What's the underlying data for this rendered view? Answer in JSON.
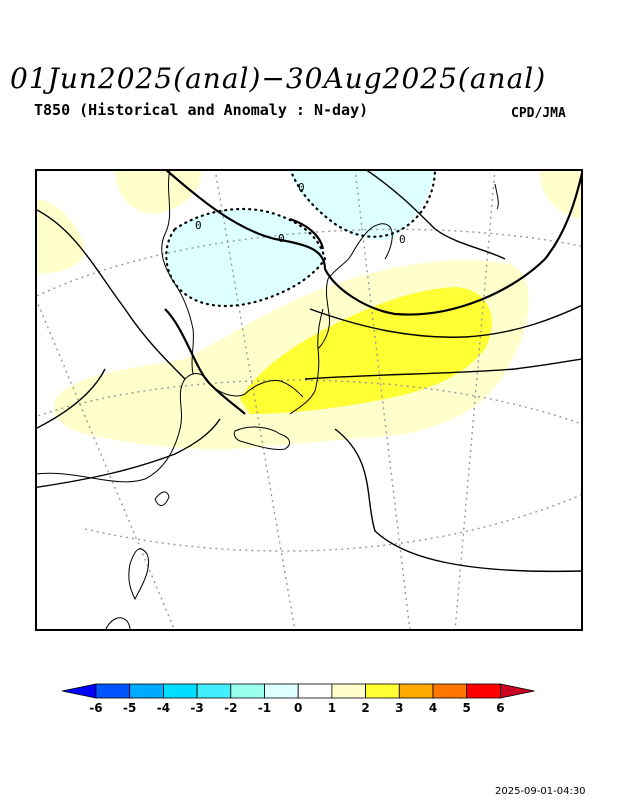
{
  "header": {
    "title": "01Jun2025(anal)−30Aug2025(anal)",
    "subtitle": "T850 (Historical and Anomaly : N-day)",
    "source": "CPD/JMA"
  },
  "map": {
    "contour_labels": [
      "0",
      "0",
      "0",
      "0"
    ],
    "shading_colors": {
      "pos1": "#ffffcc",
      "pos2": "#ffff33",
      "neg1": "#ddffff"
    }
  },
  "legend": {
    "ticks": [
      "-6",
      "-5",
      "-4",
      "-3",
      "-2",
      "-1",
      "0",
      "1",
      "2",
      "3",
      "4",
      "5",
      "6"
    ],
    "colors": [
      "#0000ff",
      "#0055ff",
      "#00aaff",
      "#00ddff",
      "#44eeff",
      "#99ffee",
      "#ddffff",
      "#ffffff",
      "#ffffcc",
      "#ffff33",
      "#ffaa00",
      "#ff7700",
      "#ff0000",
      "#cc0022"
    ]
  },
  "footer": {
    "timestamp": "2025-09-01-04:30"
  }
}
